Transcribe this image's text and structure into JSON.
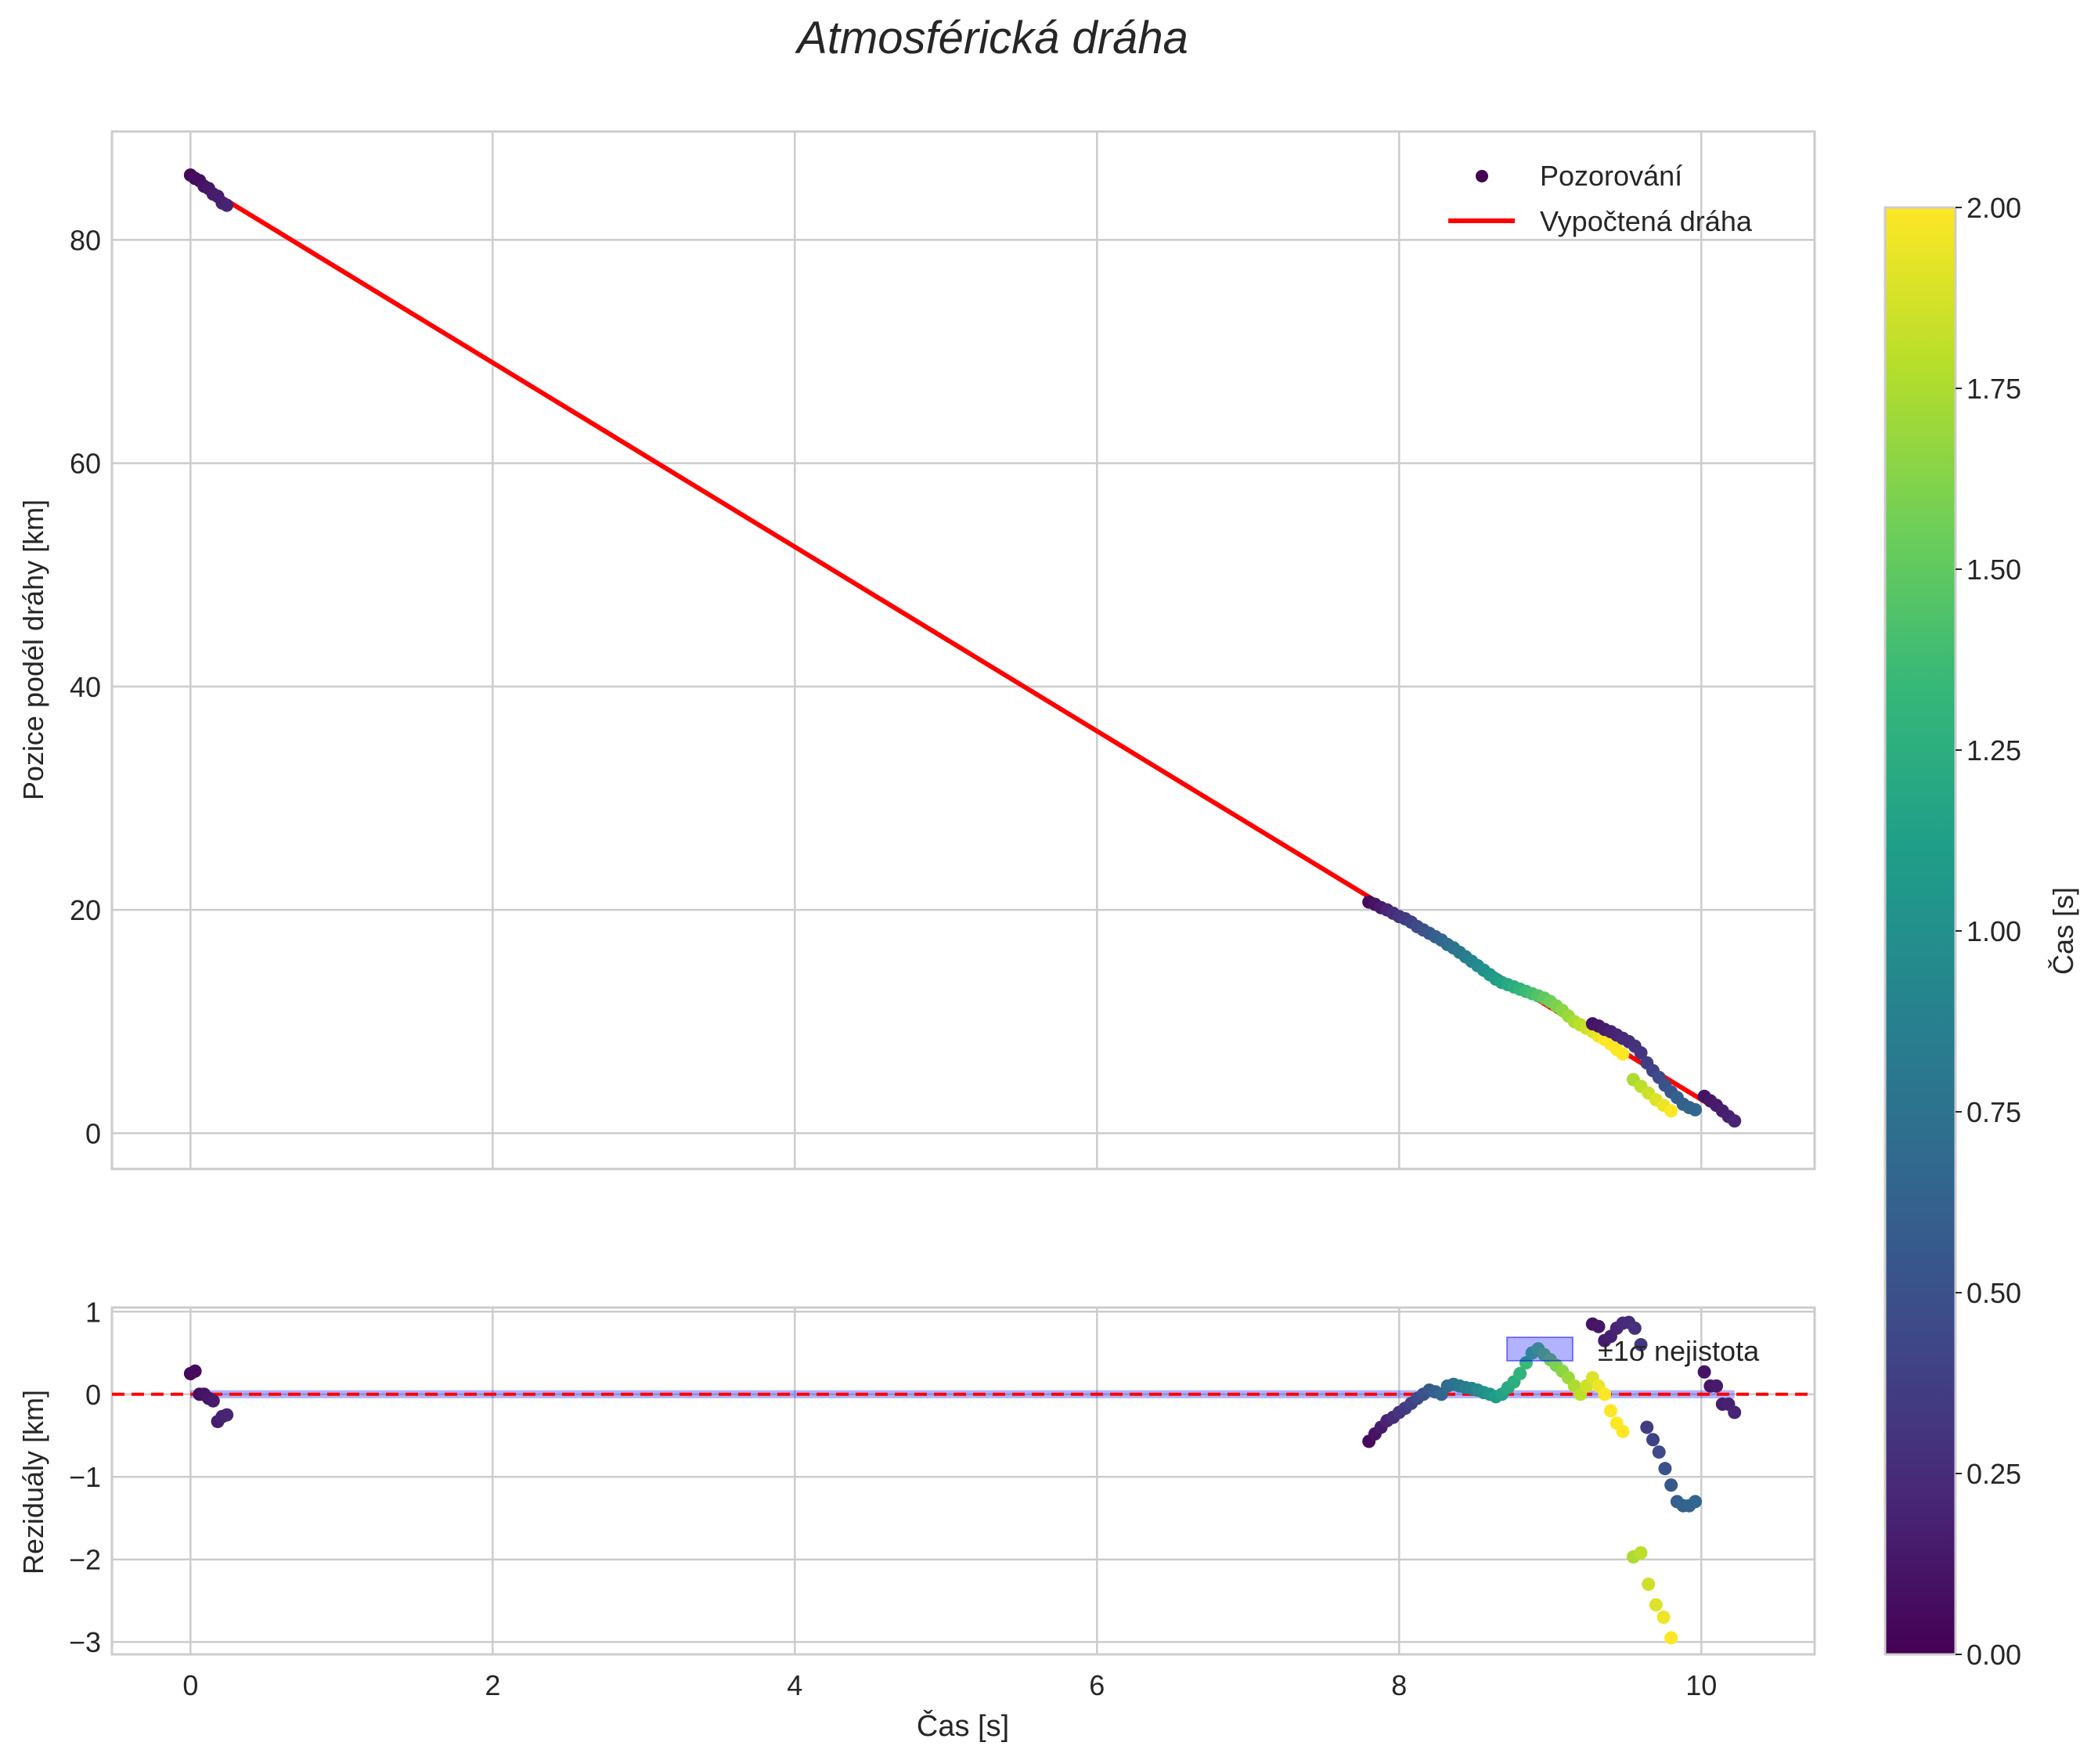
{
  "figure": {
    "title": "Atmosférická dráha",
    "xlabel": "Čas [s]"
  },
  "chart_data": [
    {
      "type": "scatter",
      "name": "main-trajectory",
      "ylabel": "Pozice podél dráhy [km]",
      "xlim": [
        -0.52,
        10.75
      ],
      "ylim": [
        -3.2,
        89.7
      ],
      "xticks": [
        "0",
        "2",
        "4",
        "6",
        "8",
        "10"
      ],
      "yticks": [
        "0",
        "20",
        "40",
        "60",
        "80"
      ],
      "ytick_values": [
        0,
        20,
        40,
        60,
        80
      ],
      "grid": true,
      "legend": {
        "placement": "top-right",
        "observations_label": "Pozorování",
        "fit_label": "Vypočtená dráha"
      },
      "fit_line": {
        "color": "#ff0000",
        "x": [
          0.0,
          10.22
        ],
        "y": [
          85.5,
          1.2
        ]
      },
      "observations": {
        "x": [
          0.0,
          0.03,
          0.06,
          0.09,
          0.12,
          0.15,
          0.18,
          0.21,
          0.24,
          7.8,
          7.84,
          7.88,
          7.92,
          7.96,
          8.0,
          8.04,
          8.08,
          8.12,
          8.16,
          8.2,
          8.24,
          8.28,
          8.32,
          8.36,
          8.4,
          8.44,
          8.48,
          8.52,
          8.56,
          8.6,
          8.64,
          8.68,
          8.72,
          8.76,
          8.8,
          8.84,
          8.88,
          8.92,
          8.96,
          9.0,
          9.04,
          9.08,
          9.12,
          9.16,
          9.2,
          9.24,
          9.28,
          9.32,
          9.36,
          9.4,
          9.44,
          9.48,
          9.28,
          9.32,
          9.36,
          9.4,
          9.44,
          9.48,
          9.52,
          9.56,
          9.6,
          9.64,
          9.68,
          9.72,
          9.76,
          9.8,
          9.84,
          9.88,
          9.92,
          9.96,
          9.55,
          9.6,
          9.65,
          9.7,
          9.75,
          9.8,
          10.02,
          10.06,
          10.1,
          10.14,
          10.18,
          10.22
        ],
        "y": [
          85.8,
          85.5,
          85.3,
          84.8,
          84.6,
          84.1,
          83.9,
          83.3,
          83.1,
          20.7,
          20.5,
          20.2,
          20.0,
          19.7,
          19.4,
          19.2,
          18.9,
          18.5,
          18.2,
          17.9,
          17.6,
          17.3,
          16.9,
          16.6,
          16.2,
          15.8,
          15.4,
          15.0,
          14.6,
          14.2,
          13.8,
          13.5,
          13.3,
          13.1,
          12.9,
          12.7,
          12.5,
          12.3,
          12.1,
          11.8,
          11.4,
          11.0,
          10.5,
          10.0,
          9.7,
          9.4,
          9.1,
          8.7,
          8.4,
          8.0,
          7.5,
          7.1,
          9.8,
          9.6,
          9.3,
          9.1,
          8.8,
          8.5,
          8.2,
          7.8,
          7.2,
          6.3,
          5.6,
          5.0,
          4.3,
          3.7,
          3.2,
          2.6,
          2.3,
          2.1,
          4.8,
          4.2,
          3.6,
          3.0,
          2.5,
          2.0,
          3.3,
          2.9,
          2.5,
          2.0,
          1.5,
          1.1
        ],
        "color_values": [
          0.04,
          0.06,
          0.08,
          0.1,
          0.12,
          0.14,
          0.16,
          0.18,
          0.2,
          0.05,
          0.1,
          0.15,
          0.2,
          0.25,
          0.3,
          0.35,
          0.4,
          0.45,
          0.5,
          0.55,
          0.6,
          0.65,
          0.7,
          0.75,
          0.8,
          0.85,
          0.9,
          0.95,
          1.0,
          1.05,
          1.1,
          1.15,
          1.2,
          1.25,
          1.3,
          1.35,
          1.4,
          1.45,
          1.5,
          1.55,
          1.6,
          1.65,
          1.7,
          1.75,
          1.8,
          1.85,
          1.9,
          1.95,
          2.0,
          2.0,
          2.0,
          2.0,
          0.1,
          0.12,
          0.15,
          0.18,
          0.2,
          0.22,
          0.25,
          0.28,
          0.32,
          0.36,
          0.4,
          0.45,
          0.5,
          0.55,
          0.6,
          0.62,
          0.64,
          0.66,
          1.75,
          1.8,
          1.85,
          1.9,
          1.95,
          2.0,
          0.1,
          0.12,
          0.14,
          0.16,
          0.18,
          0.2
        ]
      }
    },
    {
      "type": "scatter",
      "name": "residuals",
      "ylabel": "Reziduály [km]",
      "xlim": [
        -0.52,
        10.75
      ],
      "ylim": [
        -3.15,
        1.05
      ],
      "xticks": [
        "0",
        "2",
        "4",
        "6",
        "8",
        "10"
      ],
      "yticks": [
        "−3",
        "−2",
        "−1",
        "0",
        "1"
      ],
      "ytick_values": [
        -3,
        -2,
        -1,
        0,
        1
      ],
      "grid": true,
      "zero_line": {
        "color": "#ff0000",
        "style": "dashed",
        "y": 0
      },
      "uncertainty_band": {
        "label": "±1σ nejistota",
        "color": "#0000ff",
        "y_low": -0.02,
        "y_high": 0.02,
        "x": [
          0.0,
          10.22
        ]
      },
      "observations": {
        "x": [
          0.0,
          0.03,
          0.06,
          0.09,
          0.12,
          0.15,
          0.18,
          0.21,
          0.24,
          7.8,
          7.84,
          7.88,
          7.92,
          7.96,
          8.0,
          8.04,
          8.08,
          8.12,
          8.16,
          8.2,
          8.24,
          8.28,
          8.32,
          8.36,
          8.4,
          8.44,
          8.48,
          8.52,
          8.56,
          8.6,
          8.64,
          8.68,
          8.72,
          8.76,
          8.8,
          8.84,
          8.88,
          8.92,
          8.96,
          9.0,
          9.04,
          9.08,
          9.12,
          9.16,
          9.2,
          9.24,
          9.28,
          9.32,
          9.36,
          9.4,
          9.44,
          9.48,
          9.28,
          9.32,
          9.36,
          9.4,
          9.44,
          9.48,
          9.52,
          9.56,
          9.6,
          9.64,
          9.68,
          9.72,
          9.76,
          9.8,
          9.84,
          9.88,
          9.92,
          9.96,
          9.55,
          9.6,
          9.65,
          9.7,
          9.75,
          9.8,
          10.02,
          10.06,
          10.1,
          10.14,
          10.18,
          10.22
        ],
        "y": [
          0.25,
          0.28,
          0.0,
          0.0,
          -0.05,
          -0.08,
          -0.33,
          -0.27,
          -0.25,
          -0.57,
          -0.48,
          -0.4,
          -0.32,
          -0.28,
          -0.22,
          -0.17,
          -0.11,
          -0.05,
          0.0,
          0.05,
          0.03,
          0.0,
          0.1,
          0.12,
          0.1,
          0.08,
          0.07,
          0.05,
          0.02,
          0.0,
          -0.03,
          0.0,
          0.08,
          0.15,
          0.25,
          0.38,
          0.5,
          0.55,
          0.48,
          0.42,
          0.35,
          0.28,
          0.2,
          0.1,
          0.0,
          0.1,
          0.2,
          0.1,
          0.0,
          -0.2,
          -0.35,
          -0.45,
          0.85,
          0.82,
          0.65,
          0.7,
          0.8,
          0.86,
          0.87,
          0.8,
          0.6,
          -0.4,
          -0.55,
          -0.7,
          -0.9,
          -1.1,
          -1.3,
          -1.35,
          -1.35,
          -1.3,
          -1.97,
          -1.92,
          -2.3,
          -2.55,
          -2.7,
          -2.95,
          0.27,
          0.1,
          0.1,
          -0.12,
          -0.12,
          -0.22
        ],
        "color_values": [
          0.04,
          0.06,
          0.08,
          0.1,
          0.12,
          0.14,
          0.16,
          0.18,
          0.2,
          0.05,
          0.1,
          0.15,
          0.2,
          0.25,
          0.3,
          0.35,
          0.4,
          0.45,
          0.5,
          0.55,
          0.6,
          0.65,
          0.7,
          0.75,
          0.8,
          0.85,
          0.9,
          0.95,
          1.0,
          1.05,
          1.1,
          1.15,
          1.2,
          1.25,
          1.3,
          1.35,
          1.4,
          1.45,
          1.5,
          1.55,
          1.6,
          1.65,
          1.7,
          1.75,
          1.8,
          1.85,
          1.9,
          1.95,
          2.0,
          2.0,
          2.0,
          2.0,
          0.1,
          0.12,
          0.15,
          0.18,
          0.2,
          0.22,
          0.25,
          0.28,
          0.32,
          0.36,
          0.4,
          0.45,
          0.5,
          0.55,
          0.6,
          0.62,
          0.64,
          0.66,
          1.75,
          1.8,
          1.85,
          1.9,
          1.95,
          2.0,
          0.1,
          0.12,
          0.14,
          0.16,
          0.18,
          0.2
        ]
      }
    }
  ],
  "colorbar": {
    "label": "Čas [s]",
    "colormap": "viridis",
    "range": [
      0.0,
      2.0
    ],
    "tick_values": [
      0.0,
      0.25,
      0.5,
      0.75,
      1.0,
      1.25,
      1.5,
      1.75,
      2.0
    ],
    "tick_labels": [
      "0.00",
      "0.25",
      "0.50",
      "0.75",
      "1.00",
      "1.25",
      "1.50",
      "1.75",
      "2.00"
    ],
    "stops": [
      "#440154",
      "#482878",
      "#3e4989",
      "#31688e",
      "#26828e",
      "#1f9e89",
      "#35b779",
      "#6ece58",
      "#b5de2b",
      "#fde725"
    ]
  }
}
